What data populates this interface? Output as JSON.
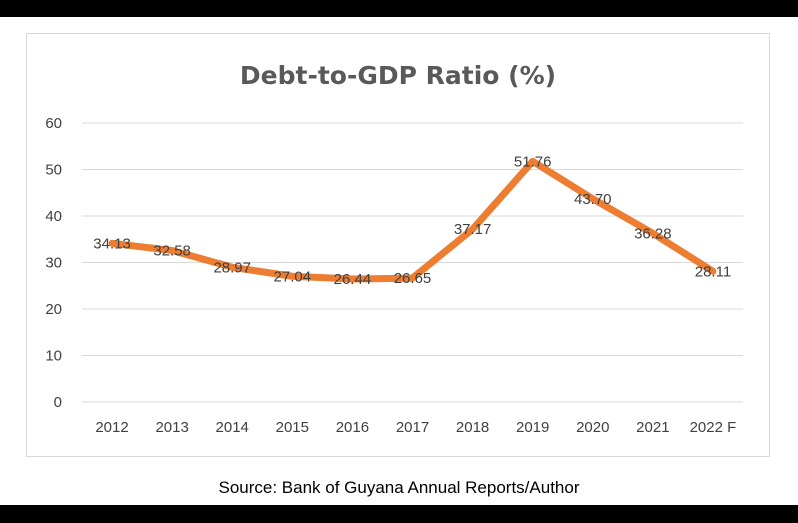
{
  "source_note": "Source: Bank of Guyana Annual Reports/Author",
  "chart_data": {
    "type": "line",
    "title": "Debt-to-GDP Ratio (%)",
    "xlabel": "",
    "ylabel": "",
    "categories": [
      "2012",
      "2013",
      "2014",
      "2015",
      "2016",
      "2017",
      "2018",
      "2019",
      "2020",
      "2021",
      "2022 F"
    ],
    "series": [
      {
        "values": [
          34.13,
          32.58,
          28.97,
          27.04,
          26.44,
          26.65,
          37.17,
          51.76,
          43.7,
          36.28,
          28.11
        ],
        "labels": [
          "34.13",
          "32.58",
          "28.97",
          "27.04",
          "26.44",
          "26.65",
          "37.17",
          "51.76",
          "43.70",
          "36.28",
          "28.11"
        ],
        "color": "#ED7D31"
      }
    ],
    "ylim": [
      0,
      60
    ],
    "yticks": [
      "0",
      "10",
      "20",
      "30",
      "40",
      "50",
      "60"
    ],
    "grid": true,
    "legend": "none",
    "gridline_color": "#d9d9d9"
  }
}
